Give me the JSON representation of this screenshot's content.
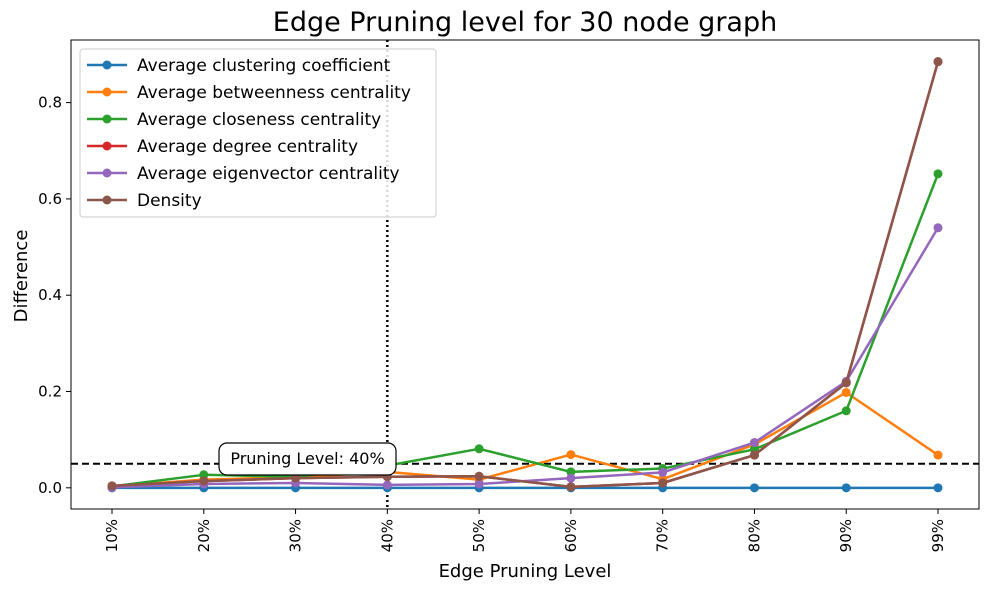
{
  "chart_data": {
    "type": "line",
    "title": "Edge Pruning level for 30 node graph",
    "xlabel": "Edge Pruning Level",
    "ylabel": "Difference",
    "categories": [
      "10%",
      "20%",
      "30%",
      "40%",
      "50%",
      "60%",
      "70%",
      "80%",
      "90%",
      "99%"
    ],
    "ylim": [
      -0.044,
      0.93
    ],
    "yticks": [
      "0.0",
      "0.2",
      "0.4",
      "0.6",
      "0.8"
    ],
    "ytick_values": [
      0.0,
      0.2,
      0.4,
      0.6,
      0.8
    ],
    "grid": false,
    "legend_position": "upper left",
    "series": [
      {
        "name": "Average clustering coefficient",
        "color": "#1f77b4",
        "values": [
          0.0,
          0.0,
          0.0,
          0.0,
          0.0,
          0.0,
          0.0,
          0.0,
          0.0,
          0.0
        ]
      },
      {
        "name": "Average betweenness centrality",
        "color": "#ff7f0e",
        "values": [
          0.003,
          0.017,
          0.022,
          0.033,
          0.017,
          0.069,
          0.018,
          0.09,
          0.198,
          0.068
        ]
      },
      {
        "name": "Average closeness centrality",
        "color": "#2ca02c",
        "values": [
          0.003,
          0.027,
          0.023,
          0.046,
          0.081,
          0.033,
          0.04,
          0.08,
          0.16,
          0.652
        ]
      },
      {
        "name": "Average degree centrality",
        "color": "#d62728",
        "values": [
          0.004,
          0.014,
          0.02,
          0.023,
          0.024,
          0.002,
          0.01,
          0.068,
          0.218,
          0.885
        ]
      },
      {
        "name": "Average eigenvector centrality",
        "color": "#9467bd",
        "values": [
          0.001,
          0.008,
          0.01,
          0.006,
          0.008,
          0.02,
          0.032,
          0.094,
          0.221,
          0.54
        ]
      },
      {
        "name": "Density",
        "color": "#8c564b",
        "values": [
          0.004,
          0.014,
          0.02,
          0.023,
          0.024,
          0.002,
          0.01,
          0.068,
          0.218,
          0.885
        ]
      }
    ],
    "annotations": {
      "threshold_line": {
        "y": 0.05,
        "style": "dashed",
        "color": "#000000"
      },
      "vertical_line": {
        "x": "40%",
        "style": "dotted",
        "color": "#000000"
      },
      "label": "Pruning Level: 40%"
    }
  }
}
